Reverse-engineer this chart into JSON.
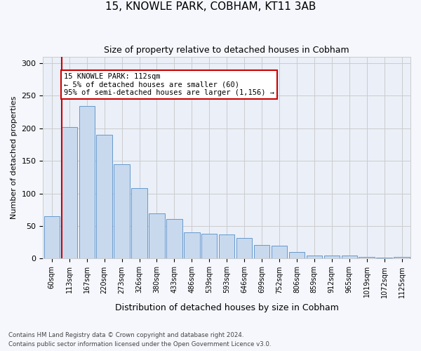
{
  "title": "15, KNOWLE PARK, COBHAM, KT11 3AB",
  "subtitle": "Size of property relative to detached houses in Cobham",
  "xlabel": "Distribution of detached houses by size in Cobham",
  "ylabel": "Number of detached properties",
  "bar_labels": [
    "60sqm",
    "113sqm",
    "167sqm",
    "220sqm",
    "273sqm",
    "326sqm",
    "380sqm",
    "433sqm",
    "486sqm",
    "539sqm",
    "593sqm",
    "646sqm",
    "699sqm",
    "752sqm",
    "806sqm",
    "859sqm",
    "912sqm",
    "965sqm",
    "1019sqm",
    "1072sqm",
    "1125sqm"
  ],
  "bar_values": [
    65,
    202,
    234,
    190,
    145,
    108,
    69,
    61,
    40,
    38,
    37,
    32,
    21,
    20,
    10,
    5,
    5,
    5,
    3,
    2,
    3
  ],
  "bar_color": "#c8d9ee",
  "bar_edge_color": "#6699cc",
  "red_line_x": 0.58,
  "annotation_text": "15 KNOWLE PARK: 112sqm\n← 5% of detached houses are smaller (60)\n95% of semi-detached houses are larger (1,156) →",
  "annotation_box_color": "#ffffff",
  "annotation_box_edge_color": "#cc0000",
  "red_line_color": "#cc0000",
  "ylim": [
    0,
    310
  ],
  "yticks": [
    0,
    50,
    100,
    150,
    200,
    250,
    300
  ],
  "grid_color": "#cccccc",
  "bg_color": "#eaeff8",
  "fig_color": "#f5f7fc",
  "footnote1": "Contains HM Land Registry data © Crown copyright and database right 2024.",
  "footnote2": "Contains public sector information licensed under the Open Government Licence v3.0."
}
